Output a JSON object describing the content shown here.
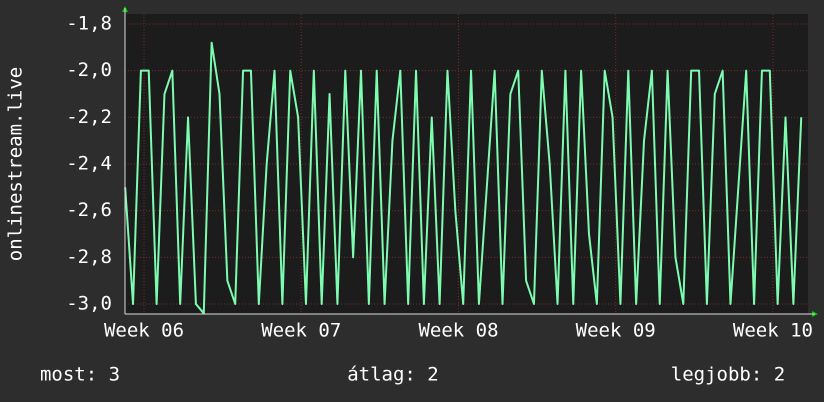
{
  "chart_data": {
    "type": "line",
    "ylabel": "onlinestream.live",
    "x": [
      5.88,
      5.93,
      5.98,
      6.03,
      6.08,
      6.13,
      6.18,
      6.23,
      6.28,
      6.33,
      6.38,
      6.43,
      6.48,
      6.53,
      6.58,
      6.63,
      6.68,
      6.73,
      6.78,
      6.83,
      6.88,
      6.93,
      6.98,
      7.03,
      7.08,
      7.13,
      7.18,
      7.23,
      7.28,
      7.33,
      7.38,
      7.43,
      7.48,
      7.53,
      7.58,
      7.63,
      7.68,
      7.73,
      7.78,
      7.83,
      7.88,
      7.93,
      7.98,
      8.03,
      8.08,
      8.13,
      8.18,
      8.23,
      8.28,
      8.33,
      8.38,
      8.43,
      8.48,
      8.53,
      8.58,
      8.63,
      8.68,
      8.73,
      8.78,
      8.83,
      8.88,
      8.93,
      8.98,
      9.03,
      9.08,
      9.13,
      9.18,
      9.23,
      9.28,
      9.33,
      9.38,
      9.43,
      9.48,
      9.53,
      9.58,
      9.63,
      9.68,
      9.73,
      9.78,
      9.83,
      9.88,
      9.93,
      9.98,
      10.03,
      10.08,
      10.13,
      10.18
    ],
    "series": [
      {
        "color": "#7dfcb0",
        "values": [
          -2.5,
          -3.0,
          -2.0,
          -2.0,
          -3.0,
          -2.1,
          -2.0,
          -3.0,
          -2.2,
          -3.0,
          -3.04,
          -1.88,
          -2.1,
          -2.9,
          -3.0,
          -2.0,
          -2.0,
          -3.0,
          -2.4,
          -2.0,
          -3.0,
          -2.0,
          -2.2,
          -3.0,
          -2.0,
          -3.0,
          -2.1,
          -3.0,
          -2.0,
          -2.8,
          -2.0,
          -3.0,
          -2.0,
          -3.0,
          -2.3,
          -2.0,
          -3.0,
          -2.0,
          -3.0,
          -2.2,
          -3.0,
          -2.0,
          -2.6,
          -3.0,
          -2.0,
          -3.0,
          -2.5,
          -2.0,
          -3.0,
          -2.1,
          -2.0,
          -2.9,
          -3.0,
          -2.0,
          -2.4,
          -3.0,
          -2.0,
          -3.0,
          -2.0,
          -2.7,
          -3.0,
          -2.0,
          -2.2,
          -3.0,
          -2.0,
          -3.0,
          -2.3,
          -2.0,
          -3.0,
          -2.0,
          -2.8,
          -3.0,
          -2.0,
          -2.0,
          -3.0,
          -2.1,
          -2.0,
          -3.0,
          -2.5,
          -2.0,
          -3.0,
          -2.0,
          -2.0,
          -3.0,
          -2.2,
          -3.0,
          -2.2
        ]
      }
    ],
    "xlim": [
      5.879,
      10.223
    ],
    "xticks": [
      {
        "value": 6,
        "label": "Week 06"
      },
      {
        "value": 7,
        "label": "Week 07"
      },
      {
        "value": 8,
        "label": "Week 08"
      },
      {
        "value": 9,
        "label": "Week 09"
      },
      {
        "value": 10,
        "label": "Week 10"
      }
    ],
    "ylim": [
      -3.043,
      -1.757
    ],
    "yticks": [
      {
        "value": -3.0,
        "label": "-3,0"
      },
      {
        "value": -2.8,
        "label": "-2,8"
      },
      {
        "value": -2.6,
        "label": "-2,6"
      },
      {
        "value": -2.4,
        "label": "-2,4"
      },
      {
        "value": -2.2,
        "label": "-2,2"
      },
      {
        "value": -2.0,
        "label": "-2,0"
      },
      {
        "value": -1.8,
        "label": "-1,8"
      }
    ],
    "grid": true,
    "footer": [
      "most: 3",
      "átlag: 2",
      "legjobb: 2"
    ]
  }
}
